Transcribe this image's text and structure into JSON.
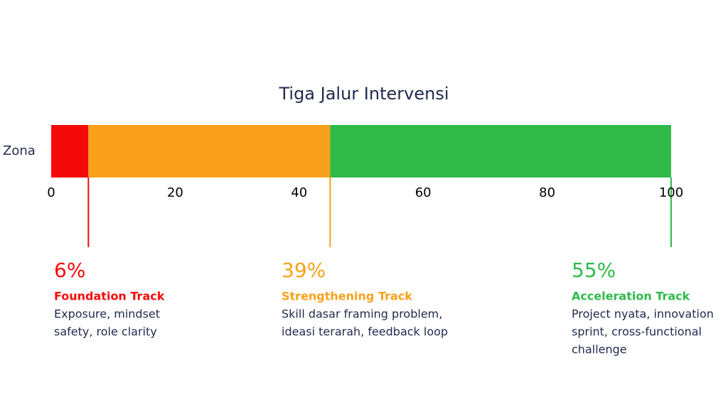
{
  "chart_data": {
    "type": "stacked-barh",
    "title": "Tiga Jalur Intervensi",
    "categories": [
      "Zona"
    ],
    "series": [
      {
        "name": "Foundation Track",
        "color": "#f50a0a",
        "values": [
          6
        ],
        "value_labels": [
          "6%"
        ],
        "description": [
          "Exposure, mindset",
          "safety, role clarity"
        ]
      },
      {
        "name": "Strengthening Track",
        "color": "#f9a11b",
        "values": [
          39
        ],
        "value_labels": [
          "39%"
        ],
        "description": [
          "Skill dasar framing problem,",
          "ideasi terarah, feedback loop"
        ]
      },
      {
        "name": "Acceleration Track",
        "color": "#2fba4a",
        "values": [
          55
        ],
        "value_labels": [
          "55%"
        ],
        "description": [
          "Project nyata, innovation",
          "sprint, cross-functional",
          "challenge"
        ]
      }
    ],
    "xlim": [
      0,
      100
    ],
    "xticks": [
      0,
      20,
      40,
      60,
      80,
      100
    ]
  }
}
